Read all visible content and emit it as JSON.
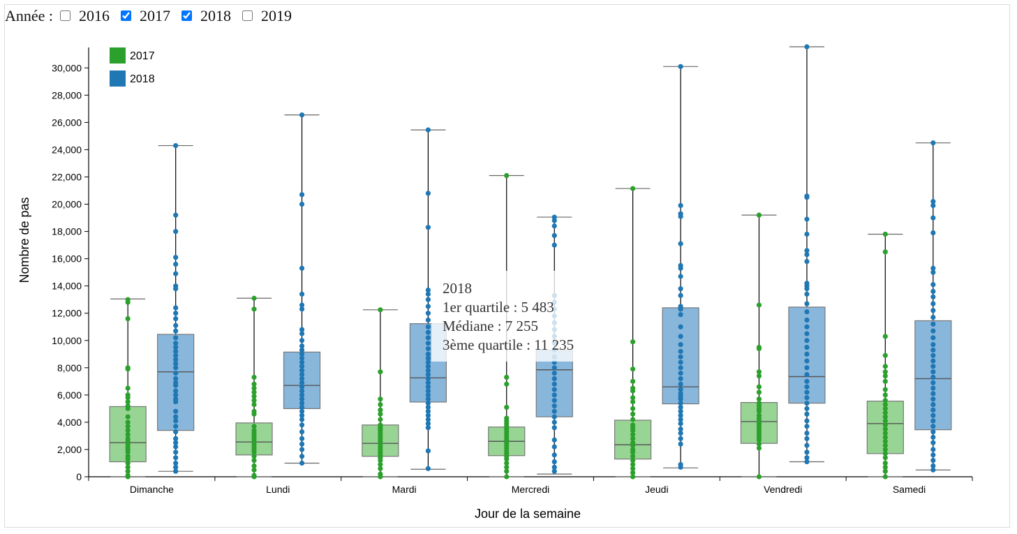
{
  "year_filter": {
    "label": "Année :",
    "options": [
      {
        "year": "2016",
        "checked": false
      },
      {
        "year": "2017",
        "checked": true
      },
      {
        "year": "2018",
        "checked": true
      },
      {
        "year": "2019",
        "checked": false
      }
    ]
  },
  "tooltip": {
    "title": "2018",
    "q1": "1er quartile : 5 483",
    "median": "Médiane : 7 255",
    "q3": "3ème quartile : 11 235"
  },
  "chart_data": {
    "type": "box",
    "xlabel": "Jour de la semaine",
    "ylabel": "Nombre de pas",
    "ylim": [
      0,
      31500
    ],
    "yticks": [
      0,
      2000,
      4000,
      6000,
      8000,
      10000,
      12000,
      14000,
      16000,
      18000,
      20000,
      22000,
      24000,
      26000,
      28000,
      30000
    ],
    "ytick_labels": [
      "0",
      "2,000",
      "4,000",
      "6,000",
      "8,000",
      "10,000",
      "12,000",
      "14,000",
      "16,000",
      "18,000",
      "20,000",
      "22,000",
      "24,000",
      "26,000",
      "28,000",
      "30,000"
    ],
    "categories": [
      "Dimanche",
      "Lundi",
      "Mardi",
      "Mercredi",
      "Jeudi",
      "Vendredi",
      "Samedi"
    ],
    "legend_position": "top-left",
    "series": [
      {
        "name": "2017",
        "color": "#2ca02c",
        "box_color": "#98d594",
        "boxes": [
          {
            "min": 0,
            "q1": 1100,
            "median": 2500,
            "q3": 5150,
            "max": 13050
          },
          {
            "min": 0,
            "q1": 1600,
            "median": 2550,
            "q3": 3950,
            "max": 13100
          },
          {
            "min": 0,
            "q1": 1500,
            "median": 2450,
            "q3": 3800,
            "max": 12250
          },
          {
            "min": 0,
            "q1": 1550,
            "median": 2600,
            "q3": 3650,
            "max": 22100
          },
          {
            "min": 0,
            "q1": 1300,
            "median": 2350,
            "q3": 4150,
            "max": 21150
          },
          {
            "min": 0,
            "q1": 2450,
            "median": 4050,
            "q3": 5450,
            "max": 19200
          },
          {
            "min": 0,
            "q1": 1700,
            "median": 3900,
            "q3": 5550,
            "max": 17800
          }
        ],
        "points": [
          [
            0,
            13000,
            12800,
            11600,
            8000,
            7900,
            6500,
            6000,
            5800,
            5500,
            5200,
            5000,
            4400,
            4000,
            3700,
            3400,
            3100,
            2800,
            2600,
            2400,
            2200,
            2000,
            1800,
            1500,
            1300,
            1000,
            700,
            400,
            100
          ],
          [
            0,
            13100,
            12300,
            7300,
            6800,
            6500,
            6200,
            5900,
            5600,
            5300,
            4800,
            4600,
            3700,
            3400,
            3200,
            3000,
            2800,
            2600,
            2400,
            2200,
            2000,
            1800,
            1500,
            1200,
            800,
            500,
            100
          ],
          [
            0,
            12250,
            7700,
            5700,
            5300,
            4900,
            4600,
            4200,
            3800,
            3700,
            3600,
            3500,
            3400,
            3200,
            3000,
            2800,
            2600,
            2400,
            2200,
            2000,
            1800,
            1600,
            1400,
            1200,
            900,
            600,
            200
          ],
          [
            0,
            22100,
            7300,
            6800,
            5100,
            4300,
            4100,
            3900,
            3700,
            3500,
            3300,
            3100,
            2900,
            2700,
            2500,
            2300,
            2100,
            1900,
            1700,
            1500,
            1300,
            1000,
            700,
            400
          ],
          [
            0,
            21150,
            9900,
            7900,
            7000,
            6500,
            6300,
            5800,
            5500,
            5000,
            4600,
            4200,
            3800,
            3600,
            3400,
            3100,
            2800,
            2500,
            2300,
            2000,
            1800,
            1500,
            1200,
            900,
            600,
            300
          ],
          [
            0,
            19200,
            12600,
            9500,
            9400,
            7700,
            7400,
            6600,
            6200,
            5700,
            5400,
            5200,
            5000,
            4800,
            4500,
            4300,
            4100,
            3900,
            3700,
            3500,
            3300,
            3100,
            2900,
            2700,
            2400,
            2100
          ],
          [
            0,
            17800,
            16500,
            10300,
            8900,
            8100,
            7700,
            7400,
            7000,
            6400,
            6000,
            5600,
            5300,
            5000,
            4700,
            4400,
            4100,
            3800,
            3500,
            3200,
            2900,
            2600,
            2300,
            2000,
            1700,
            1400,
            1000,
            700,
            400
          ]
        ]
      },
      {
        "name": "2018",
        "color": "#1f77b4",
        "box_color": "#89b7dc",
        "boxes": [
          {
            "min": 400,
            "q1": 3400,
            "median": 7700,
            "q3": 10450,
            "max": 24300
          },
          {
            "min": 1000,
            "q1": 5000,
            "median": 6700,
            "q3": 9150,
            "max": 26550
          },
          {
            "min": 550,
            "q1": 5483,
            "median": 7255,
            "q3": 11235,
            "max": 25450
          },
          {
            "min": 200,
            "q1": 4400,
            "median": 7850,
            "q3": 9300,
            "max": 19050
          },
          {
            "min": 650,
            "q1": 5350,
            "median": 6600,
            "q3": 12400,
            "max": 30100
          },
          {
            "min": 1100,
            "q1": 5400,
            "median": 7350,
            "q3": 12450,
            "max": 31550
          },
          {
            "min": 500,
            "q1": 3450,
            "median": 7200,
            "q3": 11450,
            "max": 24500
          }
        ],
        "points": [
          [
            24300,
            19200,
            18000,
            16100,
            15600,
            14900,
            14000,
            13800,
            12400,
            12000,
            11600,
            11100,
            10700,
            10200,
            9800,
            9500,
            9200,
            8900,
            8600,
            8300,
            8000,
            7600,
            7200,
            6900,
            6700,
            6300,
            6000,
            5700,
            5500,
            4800,
            4400,
            4100,
            3700,
            3300,
            2800,
            2500,
            2200,
            1800,
            1400,
            1000,
            700,
            400
          ],
          [
            26550,
            20700,
            20000,
            15300,
            13400,
            12600,
            12300,
            10800,
            10500,
            10000,
            9600,
            9300,
            9000,
            8700,
            8400,
            8100,
            7800,
            7500,
            7200,
            6900,
            6600,
            6300,
            6000,
            5700,
            5400,
            5100,
            4800,
            4500,
            4200,
            3800,
            3300,
            2800,
            2400,
            2000,
            1500,
            1000
          ],
          [
            25450,
            20800,
            18300,
            13700,
            13400,
            13000,
            12500,
            12000,
            11500,
            11000,
            10600,
            10200,
            9800,
            9400,
            9000,
            8700,
            8400,
            8100,
            7800,
            7500,
            7200,
            6900,
            6600,
            6300,
            6000,
            5700,
            5400,
            5100,
            4800,
            4500,
            4200,
            3900,
            3600,
            1900,
            600
          ],
          [
            19050,
            18800,
            18400,
            17700,
            17000,
            13300,
            12800,
            12300,
            11800,
            11300,
            10800,
            10300,
            9800,
            9300,
            8800,
            8400,
            8000,
            7600,
            7200,
            6800,
            6400,
            6000,
            5600,
            5200,
            4800,
            4400,
            4000,
            3600,
            2700,
            2200,
            1600,
            1100,
            700,
            400
          ],
          [
            30100,
            19900,
            19300,
            19100,
            17100,
            15500,
            15300,
            14700,
            13800,
            13300,
            12500,
            12300,
            11900,
            11000,
            10300,
            9700,
            9200,
            8800,
            8400,
            8000,
            7600,
            7200,
            6800,
            6400,
            6100,
            5900,
            5700,
            5400,
            5100,
            4800,
            4500,
            4200,
            3900,
            3500,
            3200,
            2800,
            2400,
            900,
            700
          ],
          [
            31550,
            20600,
            20500,
            18900,
            17800,
            16600,
            16300,
            15800,
            14200,
            14000,
            13800,
            13400,
            12700,
            12100,
            11500,
            11000,
            10500,
            10000,
            9500,
            9000,
            8500,
            8000,
            7500,
            7000,
            6600,
            6200,
            5800,
            5400,
            5000,
            4600,
            4100,
            3700,
            3200,
            2800,
            2300,
            1800,
            1400,
            1100
          ],
          [
            24500,
            20200,
            19900,
            19000,
            17900,
            15300,
            15000,
            14100,
            13600,
            13200,
            12700,
            12200,
            11700,
            11200,
            10700,
            10200,
            9700,
            9300,
            8900,
            8500,
            8100,
            7700,
            7300,
            6900,
            6500,
            6100,
            5700,
            5300,
            4900,
            4500,
            4100,
            3700,
            3300,
            2900,
            2500,
            2000,
            1600,
            1200,
            800,
            500
          ]
        ]
      }
    ]
  }
}
